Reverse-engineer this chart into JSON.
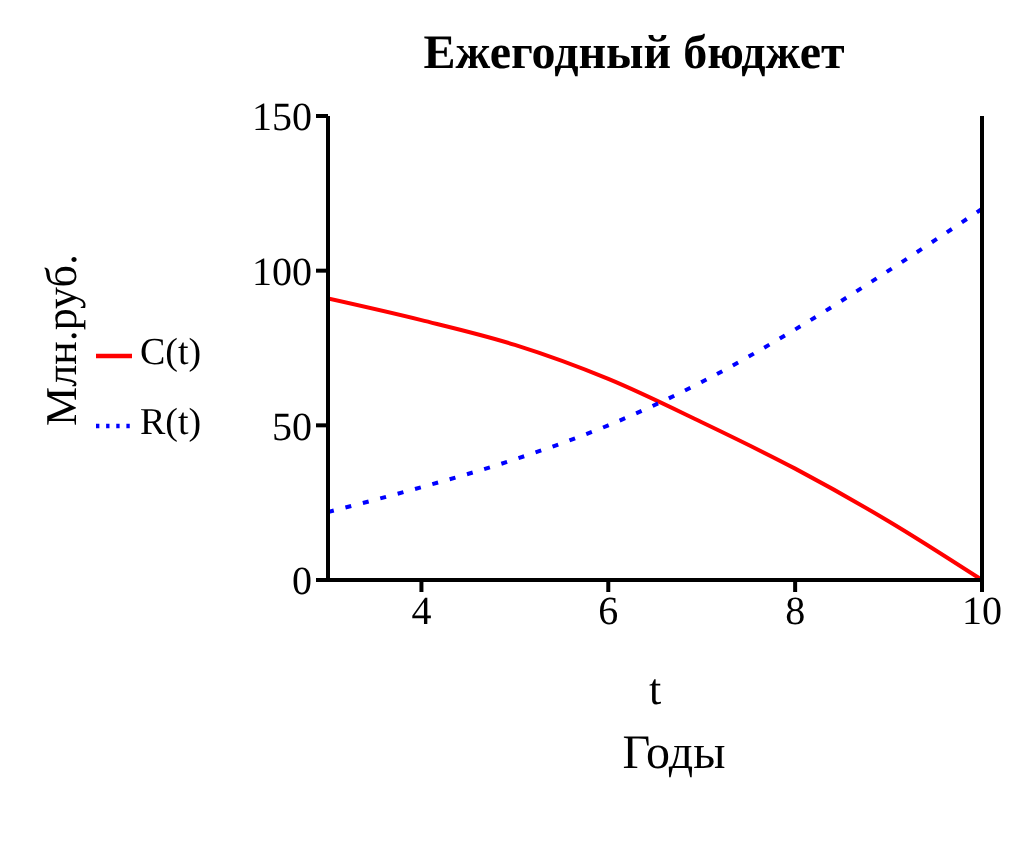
{
  "chart_data": {
    "type": "line",
    "title": "Ежегодный бюджет",
    "xlabel": "t",
    "ylabel": "Млн.руб.",
    "annotations": [
      "Годы"
    ],
    "x": [
      3,
      4,
      5,
      6,
      7,
      8,
      9,
      10
    ],
    "series": [
      {
        "name": "C(t)",
        "color": "#ff0000",
        "line_style": "solid",
        "values": [
          91,
          84,
          76,
          65,
          51,
          36,
          19,
          0
        ]
      },
      {
        "name": "R(t)",
        "color": "#0000ff",
        "line_style": "dotted",
        "values": [
          22,
          30,
          39,
          50,
          64,
          81,
          100,
          120
        ]
      }
    ],
    "xlim": [
      3,
      10
    ],
    "xticks": [
      4,
      6,
      8,
      10
    ],
    "ylim": [
      0,
      150
    ],
    "yticks": [
      0,
      50,
      100,
      150
    ],
    "grid": false,
    "legend": "left",
    "marker": "none"
  }
}
